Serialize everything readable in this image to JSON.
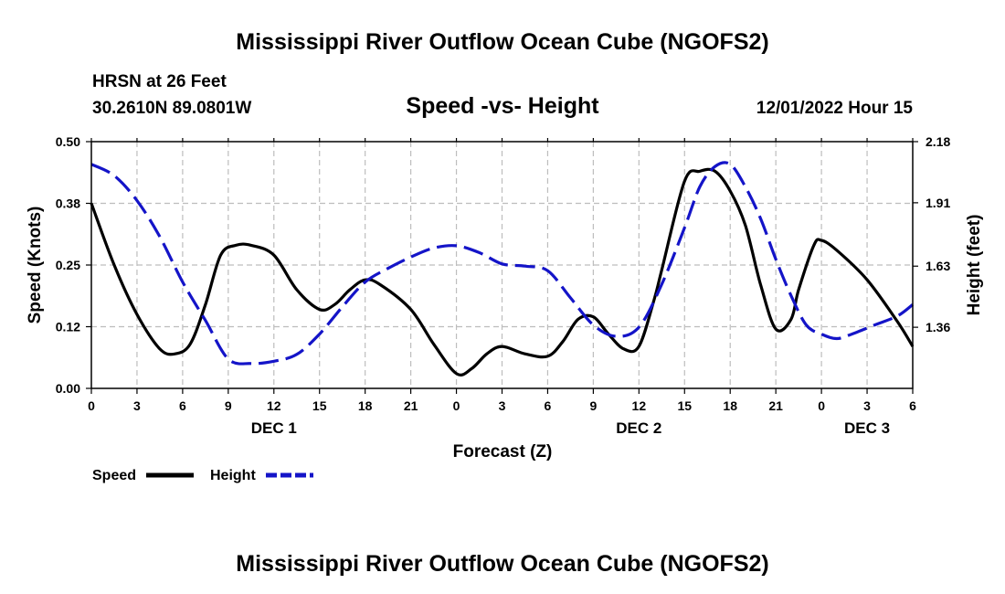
{
  "page": {
    "title": "Mississippi River Outflow Ocean Cube (NGOFS2)",
    "footer_title": "Mississippi River Outflow Ocean Cube (NGOFS2)",
    "station": "HRSN at 26 Feet",
    "coords": "30.2610N  89.0801W",
    "subtitle": "Speed -vs- Height",
    "datetime": "12/01/2022 Hour 15"
  },
  "colors": {
    "speed": "#000000",
    "height": "#1414c8",
    "grid": "#bdbdbd"
  },
  "chart_data": {
    "type": "line",
    "title": "Speed -vs- Height",
    "xlabel": "Forecast (Z)",
    "ylabel": "Speed (Knots)",
    "y2label": "Height (feet)",
    "xlim": [
      0,
      54
    ],
    "ylim": [
      0,
      0.5
    ],
    "y2lim": [
      1.09,
      2.18
    ],
    "x_ticks": [
      0,
      3,
      6,
      9,
      12,
      15,
      18,
      21,
      24,
      27,
      30,
      33,
      36,
      39,
      42,
      45,
      48,
      51,
      54
    ],
    "x_tick_labels": [
      "0",
      "3",
      "6",
      "9",
      "12",
      "15",
      "18",
      "21",
      "0",
      "3",
      "6",
      "9",
      "12",
      "15",
      "18",
      "21",
      "0",
      "3",
      "6"
    ],
    "y_ticks": [
      0,
      0.125,
      0.25,
      0.375,
      0.5
    ],
    "y_tick_labels": [
      "0.00",
      "0.12",
      "0.25",
      "0.38",
      "0.50"
    ],
    "y2_ticks": [
      1.36,
      1.63,
      1.91,
      2.18
    ],
    "y2_tick_labels": [
      "1.36",
      "1.63",
      "1.91",
      "2.18"
    ],
    "day_labels": [
      {
        "label": "DEC 1",
        "x": 12
      },
      {
        "label": "DEC 2",
        "x": 36
      },
      {
        "label": "DEC 3",
        "x": 51
      }
    ],
    "grid": true,
    "legend_position": "bottom-left",
    "series": [
      {
        "name": "Speed",
        "axis": "left",
        "style": "solid",
        "x": [
          0,
          1.5,
          3,
          4.5,
          5.5,
          6.5,
          7.5,
          8.5,
          9.5,
          10.5,
          12,
          13.5,
          15,
          16,
          17,
          18,
          19,
          21,
          22.5,
          24,
          25,
          26,
          27,
          28.5,
          30,
          31,
          32,
          33,
          34,
          35,
          36,
          37,
          37.5,
          39,
          40,
          41,
          42,
          43,
          44,
          45,
          46,
          46.5,
          47.5,
          48,
          49,
          51,
          53,
          54
        ],
        "values": [
          0.375,
          0.25,
          0.15,
          0.08,
          0.07,
          0.09,
          0.17,
          0.27,
          0.29,
          0.29,
          0.27,
          0.2,
          0.16,
          0.17,
          0.2,
          0.22,
          0.21,
          0.16,
          0.09,
          0.03,
          0.04,
          0.07,
          0.085,
          0.07,
          0.065,
          0.095,
          0.14,
          0.145,
          0.11,
          0.08,
          0.085,
          0.18,
          0.24,
          0.42,
          0.44,
          0.44,
          0.4,
          0.33,
          0.21,
          0.12,
          0.14,
          0.2,
          0.29,
          0.3,
          0.28,
          0.22,
          0.135,
          0.085
        ]
      },
      {
        "name": "Height",
        "axis": "right",
        "style": "dashed",
        "x": [
          0,
          1.5,
          3,
          4.5,
          6,
          7.5,
          9,
          10.5,
          12,
          13.5,
          15,
          16.5,
          18,
          19.5,
          21,
          22.5,
          24,
          25.5,
          27,
          28.5,
          30,
          31.5,
          33,
          34.5,
          36,
          37.5,
          39,
          40,
          41,
          42,
          43,
          44,
          45,
          46,
          47,
          48,
          49,
          50,
          51.5,
          53,
          54
        ],
        "values": [
          2.08,
          2.03,
          1.92,
          1.76,
          1.56,
          1.39,
          1.22,
          1.2,
          1.21,
          1.24,
          1.33,
          1.45,
          1.56,
          1.62,
          1.67,
          1.71,
          1.72,
          1.69,
          1.64,
          1.63,
          1.61,
          1.49,
          1.37,
          1.32,
          1.36,
          1.55,
          1.8,
          1.98,
          2.07,
          2.08,
          1.98,
          1.84,
          1.66,
          1.5,
          1.37,
          1.33,
          1.31,
          1.33,
          1.37,
          1.41,
          1.46
        ]
      }
    ]
  }
}
